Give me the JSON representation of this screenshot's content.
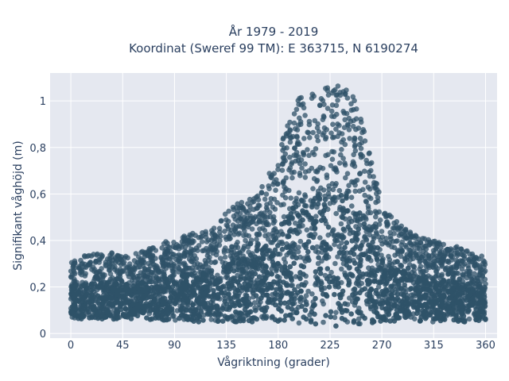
{
  "chart_data": {
    "type": "scatter",
    "title_line1": "År 1979 - 2019",
    "title_line2": "Koordinat (Sweref 99 TM): E 363715, N 6190274",
    "xlabel": "Vågriktning (grader)",
    "ylabel": "Signifikant våghöjd (m)",
    "xlim": [
      -18,
      370
    ],
    "ylim": [
      -0.02,
      1.12
    ],
    "xticks": [
      0,
      45,
      90,
      135,
      180,
      225,
      270,
      315,
      360
    ],
    "xtick_labels": [
      "0",
      "45",
      "90",
      "135",
      "180",
      "225",
      "270",
      "315",
      "360"
    ],
    "yticks": [
      0,
      0.2,
      0.4,
      0.6,
      0.8,
      1.0
    ],
    "ytick_labels": [
      "0",
      "0,2",
      "0,4",
      "0,6",
      "0,8",
      "1"
    ],
    "grid": true,
    "marker_color": "#2f5268",
    "plot_background": "#e5e8f0",
    "envelope": {
      "direction": [
        0,
        15,
        30,
        45,
        60,
        75,
        90,
        105,
        120,
        135,
        150,
        165,
        180,
        195,
        205,
        215,
        225,
        235,
        245,
        255,
        265,
        270,
        285,
        300,
        315,
        330,
        345,
        360
      ],
      "upper_height": [
        0.32,
        0.34,
        0.36,
        0.33,
        0.35,
        0.38,
        0.41,
        0.43,
        0.44,
        0.52,
        0.58,
        0.62,
        0.78,
        1.0,
        1.04,
        1.05,
        1.06,
        1.07,
        1.02,
        0.88,
        0.66,
        0.56,
        0.47,
        0.42,
        0.4,
        0.38,
        0.36,
        0.33
      ],
      "lower_height": [
        0.06,
        0.06,
        0.06,
        0.06,
        0.06,
        0.06,
        0.05,
        0.05,
        0.05,
        0.05,
        0.05,
        0.05,
        0.05,
        0.04,
        0.04,
        0.03,
        0.03,
        0.03,
        0.04,
        0.04,
        0.05,
        0.05,
        0.05,
        0.05,
        0.05,
        0.05,
        0.05,
        0.05
      ]
    }
  }
}
